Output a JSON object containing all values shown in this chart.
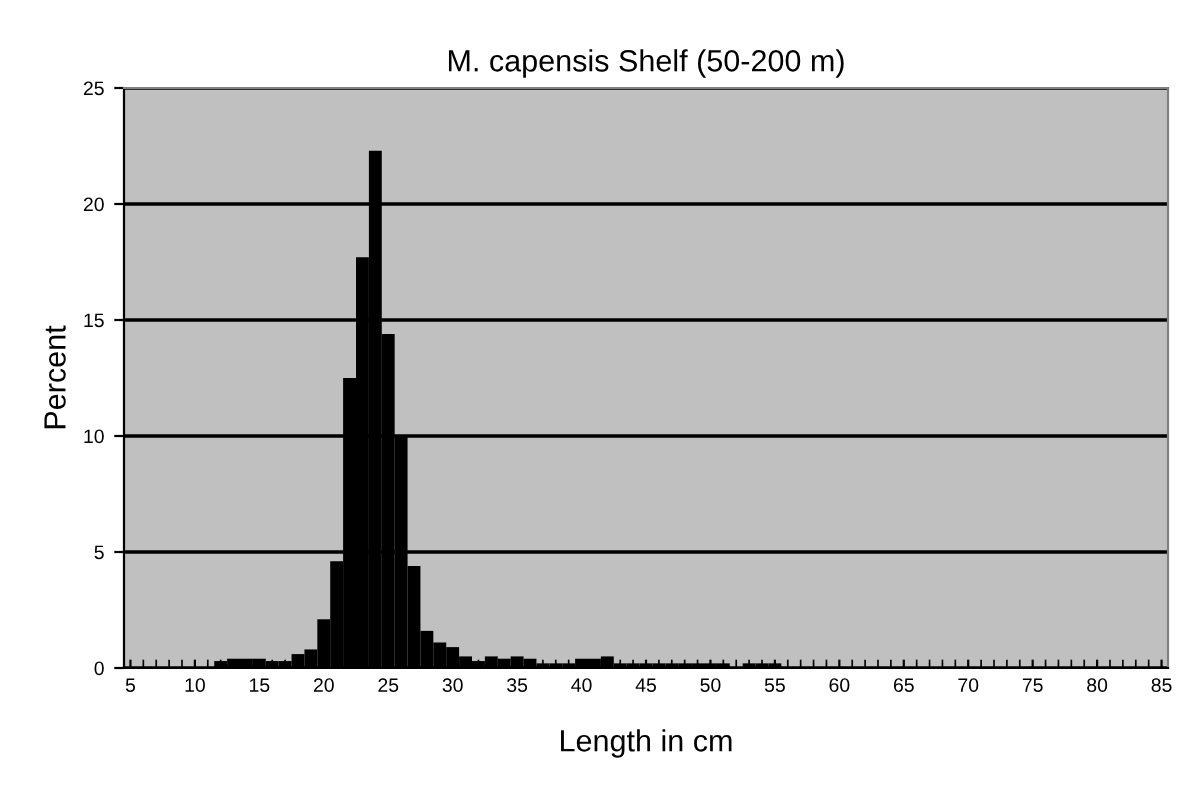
{
  "chart_data": {
    "type": "histogram",
    "title": "M. capensis Shelf (50-200 m)",
    "xlabel": "Length in cm",
    "ylabel": "Percent",
    "bins": [
      4.5,
      5.5,
      6.5,
      7.5,
      8.5,
      9.5,
      10.5,
      11.5,
      12.5,
      13.5,
      14.5,
      15.5,
      16.5,
      17.5,
      18.5,
      19.5,
      20.5,
      21.5,
      22.5,
      23.5,
      24.5,
      25.5,
      26.5,
      27.5,
      28.5,
      29.5,
      30.5,
      31.5,
      32.5,
      33.5,
      34.5,
      35.5,
      36.5,
      37.5,
      38.5,
      39.5,
      40.5,
      41.5,
      42.5,
      43.5,
      44.5,
      45.5,
      46.5,
      47.5,
      48.5,
      49.5,
      50.5,
      51.5,
      52.5,
      53.5,
      54.5,
      55.5,
      56.5,
      57.5,
      58.5,
      59.5,
      60.5,
      61.5,
      62.5,
      63.5,
      64.5,
      65.5,
      66.5,
      67.5,
      68.5,
      69.5,
      70.5,
      71.5,
      72.5,
      73.5,
      74.5,
      75.5,
      76.5,
      77.5,
      78.5,
      79.5,
      80.5,
      81.5,
      82.5,
      83.5,
      84.5,
      85.5
    ],
    "values": [
      0,
      0,
      0,
      0,
      0,
      0,
      0,
      0.3,
      0.4,
      0.4,
      0.4,
      0.3,
      0.3,
      0.6,
      0.8,
      2.1,
      4.6,
      12.5,
      17.7,
      22.3,
      14.4,
      10.0,
      4.4,
      1.6,
      1.1,
      0.9,
      0.5,
      0.3,
      0.5,
      0.4,
      0.5,
      0.4,
      0.2,
      0.2,
      0.2,
      0.4,
      0.4,
      0.5,
      0.2,
      0.2,
      0.2,
      0.2,
      0.2,
      0.2,
      0.2,
      0.2,
      0.2,
      0,
      0.2,
      0.2,
      0.2,
      0,
      0,
      0,
      0,
      0,
      0,
      0,
      0,
      0,
      0,
      0,
      0,
      0,
      0,
      0,
      0,
      0,
      0,
      0,
      0,
      0,
      0,
      0,
      0,
      0,
      0,
      0,
      0,
      0,
      0
    ],
    "color": "#000000",
    "xlim": [
      4.5,
      85.5
    ],
    "ylim": [
      0,
      25
    ],
    "xticks": [
      5,
      10,
      15,
      20,
      25,
      30,
      35,
      40,
      45,
      50,
      55,
      60,
      65,
      70,
      75,
      80,
      85
    ],
    "yticks": [
      0,
      5,
      10,
      15,
      20,
      25
    ],
    "grid": "y"
  }
}
